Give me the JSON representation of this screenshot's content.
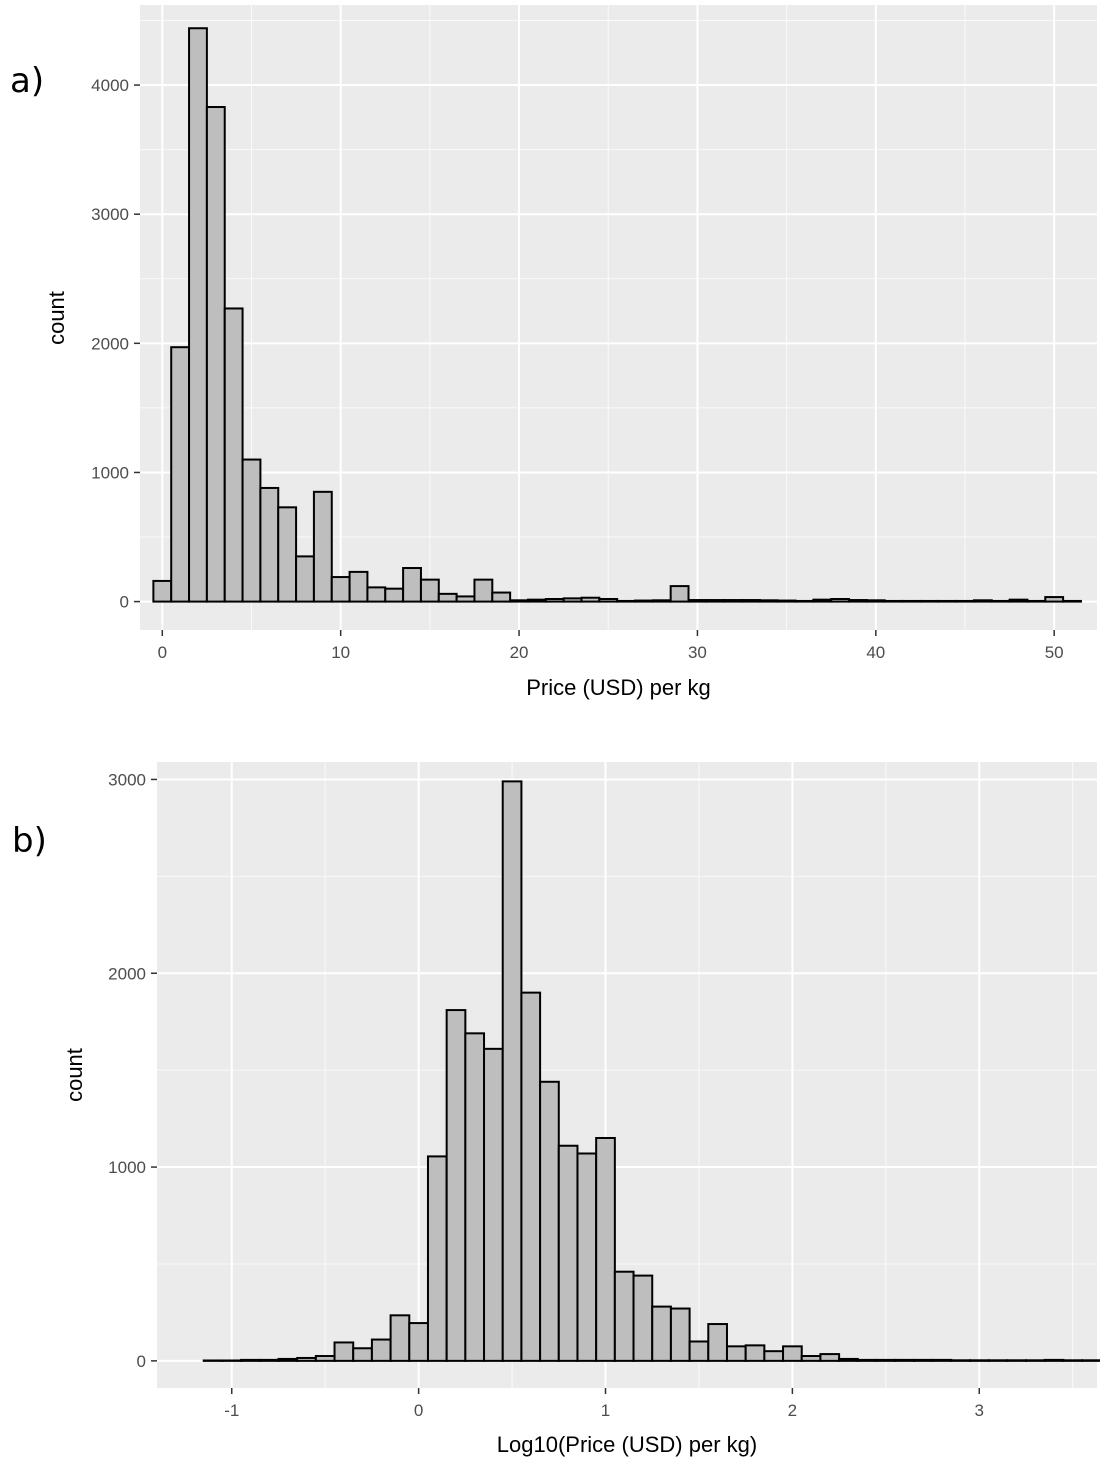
{
  "chart_data": [
    {
      "type": "bar",
      "panel_label": "a)",
      "xlabel": "Price (USD) per kg",
      "ylabel": "count",
      "xlim": [
        -1.25,
        52.4
      ],
      "ylim": [
        -220,
        4620
      ],
      "xticks": [
        0,
        10,
        20,
        30,
        40,
        50
      ],
      "xtick_labels": [
        "0",
        "10",
        "20",
        "30",
        "40",
        "50"
      ],
      "yticks": [
        0,
        1000,
        2000,
        3000,
        4000
      ],
      "ytick_labels": [
        "0",
        "1000",
        "2000",
        "3000",
        "4000"
      ],
      "bin_width": 1,
      "bin_start": -0.5,
      "fill_color": "#bebebe",
      "edge_color": "#000000",
      "grid": true,
      "values": [
        160,
        1970,
        4440,
        3830,
        2270,
        1100,
        880,
        730,
        350,
        850,
        190,
        230,
        110,
        100,
        260,
        170,
        60,
        40,
        170,
        70,
        10,
        15,
        20,
        25,
        30,
        20,
        5,
        8,
        10,
        120,
        12,
        12,
        12,
        12,
        10,
        8,
        5,
        15,
        20,
        12,
        10,
        5,
        5,
        5,
        5,
        5,
        10,
        5,
        15,
        5,
        35,
        5
      ]
    },
    {
      "type": "bar",
      "panel_label": "b)",
      "xlabel": "Log10(Price (USD) per kg)",
      "ylabel": "count",
      "xlim": [
        -1.4,
        3.63
      ],
      "ylim": [
        -140,
        3090
      ],
      "xticks": [
        -1,
        0,
        1,
        2,
        3
      ],
      "xtick_labels": [
        "-1",
        "0",
        "1",
        "2",
        "3"
      ],
      "yticks": [
        0,
        1000,
        2000,
        3000
      ],
      "ytick_labels": [
        "0",
        "1000",
        "2000",
        "3000"
      ],
      "bin_width": 0.1,
      "bin_start": -1.15,
      "fill_color": "#bebebe",
      "edge_color": "#000000",
      "grid": true,
      "values": [
        2,
        2,
        5,
        5,
        10,
        15,
        25,
        95,
        65,
        110,
        235,
        195,
        1055,
        1810,
        1690,
        1610,
        2990,
        1900,
        1440,
        1110,
        1070,
        1150,
        460,
        440,
        280,
        270,
        100,
        190,
        75,
        80,
        50,
        75,
        25,
        35,
        10,
        5,
        5,
        5,
        5,
        5,
        3,
        3,
        3,
        3,
        3,
        5,
        3,
        3,
        3,
        3
      ]
    }
  ]
}
